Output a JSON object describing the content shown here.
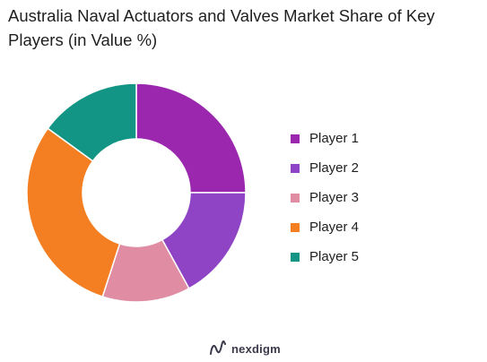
{
  "title": "Australia Naval Actuators and Valves Market Share of Key Players (in Value %)",
  "brand": {
    "name": "nexdigm",
    "icon": "nexdigm-logo-icon"
  },
  "chart_data": {
    "type": "pie",
    "variant": "donut",
    "title": "Australia Naval Actuators and Valves Market Share of Key Players (in Value %)",
    "legend_position": "right",
    "categories": [
      "Player 1",
      "Player 2",
      "Player 3",
      "Player 4",
      "Player 5"
    ],
    "values": [
      25,
      17,
      13,
      30,
      15
    ],
    "colors": [
      "#9b27af",
      "#8e44c4",
      "#e08ca3",
      "#f47f22",
      "#139585"
    ]
  }
}
